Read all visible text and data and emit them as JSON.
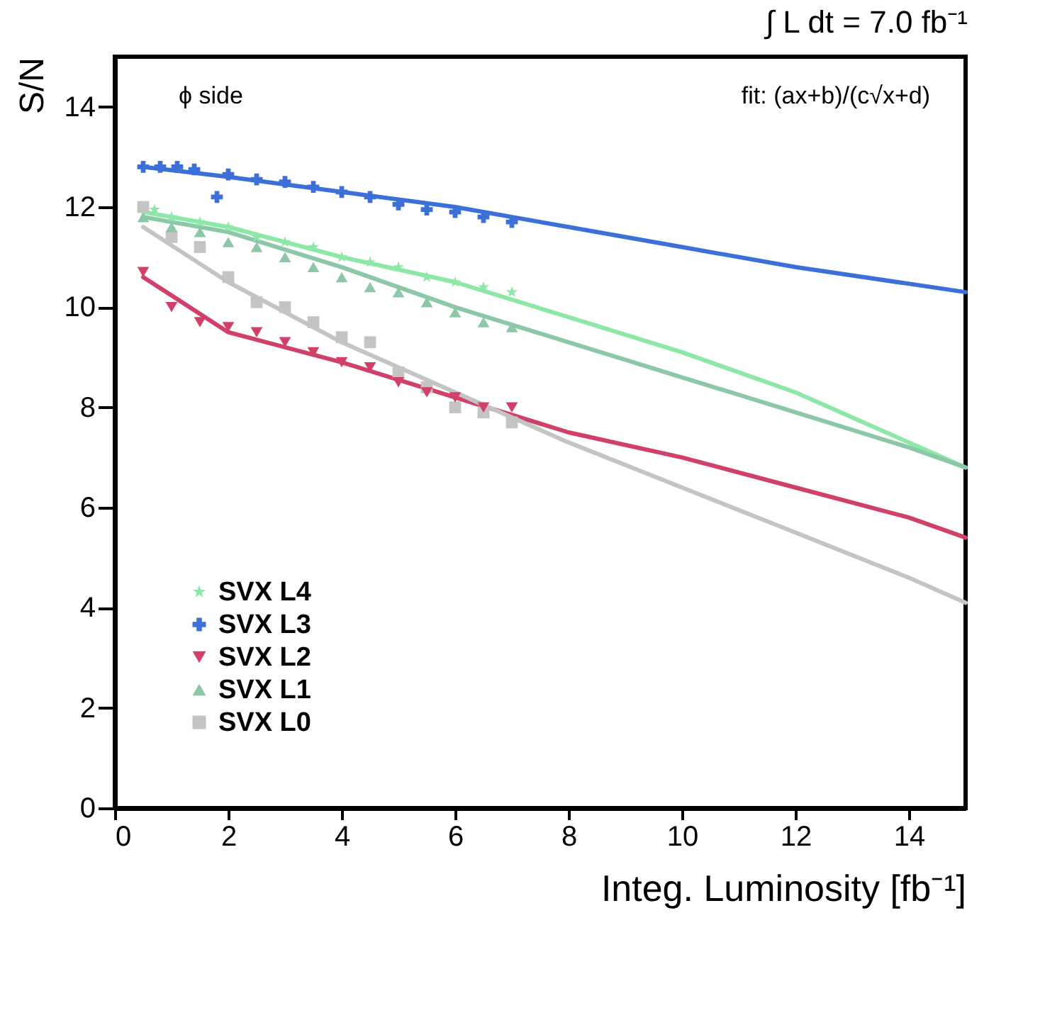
{
  "chart_data": {
    "type": "scatter",
    "title": "∫ L dt = 7.0 fb⁻¹",
    "xlabel": "Integ. Luminosity [fb⁻¹]",
    "ylabel": "S/N",
    "annotations": [
      "ϕ side",
      "fit: (ax+b)/(c√x+d)"
    ],
    "xlim": [
      0,
      15
    ],
    "xticks": [
      0,
      2,
      4,
      6,
      8,
      10,
      12,
      14
    ],
    "ylim": [
      0,
      15
    ],
    "yticks": [
      0,
      2,
      4,
      6,
      8,
      10,
      12,
      14
    ],
    "legend": "bottom left",
    "series": [
      {
        "name": "SVX L4",
        "type": "scatter",
        "marker": "star",
        "color": "#8de8a8",
        "x": [
          0.7,
          1,
          1.5,
          2,
          2.5,
          3,
          3.5,
          4,
          4.5,
          5,
          5.5,
          6,
          6.5,
          7
        ],
        "values": [
          11.95,
          11.8,
          11.7,
          11.6,
          11.4,
          11.3,
          11.2,
          11.0,
          10.9,
          10.8,
          10.6,
          10.5,
          10.4,
          10.3
        ]
      },
      {
        "name": "SVX L3",
        "type": "scatter",
        "marker": "cross",
        "color": "#3c6fd8",
        "x": [
          0.5,
          0.8,
          1.1,
          1.4,
          1.8,
          2,
          2.5,
          3,
          3.5,
          4,
          4.5,
          5,
          5.5,
          6,
          6.5,
          7
        ],
        "values": [
          12.8,
          12.8,
          12.8,
          12.75,
          12.2,
          12.65,
          12.55,
          12.5,
          12.4,
          12.3,
          12.2,
          12.05,
          11.95,
          11.9,
          11.8,
          11.7
        ]
      },
      {
        "name": "SVX L2",
        "type": "scatter",
        "marker": "triangle-down",
        "color": "#d04068",
        "x": [
          0.5,
          1,
          1.5,
          2,
          2.5,
          3,
          3.5,
          4,
          4.5,
          5,
          5.5,
          6,
          6.5,
          7
        ],
        "values": [
          10.7,
          10.0,
          9.7,
          9.6,
          9.5,
          9.3,
          9.1,
          8.9,
          8.8,
          8.5,
          8.3,
          8.2,
          8.0,
          8.0
        ]
      },
      {
        "name": "SVX L1",
        "type": "scatter",
        "marker": "triangle-up",
        "color": "#8cc8a8",
        "x": [
          0.5,
          1,
          1.5,
          2,
          2.5,
          3,
          3.5,
          4,
          4.5,
          5,
          5.5,
          6,
          6.5,
          7
        ],
        "values": [
          11.8,
          11.6,
          11.5,
          11.3,
          11.2,
          11.0,
          10.8,
          10.6,
          10.4,
          10.3,
          10.1,
          9.9,
          9.7,
          9.6
        ]
      },
      {
        "name": "SVX L0",
        "type": "scatter",
        "marker": "square",
        "color": "#c4c4c4",
        "x": [
          0.5,
          1,
          1.5,
          2,
          2.5,
          3,
          3.5,
          4,
          4.5,
          5,
          5.5,
          6,
          6.5,
          7
        ],
        "values": [
          12.0,
          11.4,
          11.2,
          10.6,
          10.1,
          10.0,
          9.7,
          9.4,
          9.3,
          8.7,
          8.4,
          8.0,
          7.9,
          7.7
        ]
      },
      {
        "type": "line",
        "color": "#8de8a8",
        "x": [
          0.5,
          2,
          4,
          6,
          8,
          10,
          12,
          14,
          15
        ],
        "values": [
          11.9,
          11.6,
          11.0,
          10.5,
          9.8,
          9.1,
          8.3,
          7.3,
          6.8
        ]
      },
      {
        "type": "line",
        "color": "#3c6fd8",
        "x": [
          0.5,
          2,
          4,
          6,
          8,
          10,
          12,
          15
        ],
        "values": [
          12.8,
          12.6,
          12.3,
          12.0,
          11.6,
          11.2,
          10.8,
          10.3
        ]
      },
      {
        "type": "line",
        "color": "#d04068",
        "x": [
          0.5,
          2,
          4,
          6,
          8,
          10,
          12,
          14,
          15
        ],
        "values": [
          10.6,
          9.5,
          8.9,
          8.2,
          7.5,
          7.0,
          6.4,
          5.8,
          5.4
        ]
      },
      {
        "type": "line",
        "color": "#8cc8a8",
        "x": [
          0.5,
          2,
          4,
          6,
          8,
          10,
          12,
          14,
          15
        ],
        "values": [
          11.8,
          11.5,
          10.8,
          10.0,
          9.3,
          8.6,
          7.9,
          7.2,
          6.8
        ]
      },
      {
        "type": "line",
        "color": "#c4c4c4",
        "x": [
          0.5,
          2,
          4,
          6,
          8,
          10,
          12,
          14,
          15
        ],
        "values": [
          11.6,
          10.5,
          9.3,
          8.3,
          7.3,
          6.4,
          5.5,
          4.6,
          4.1
        ]
      }
    ]
  }
}
